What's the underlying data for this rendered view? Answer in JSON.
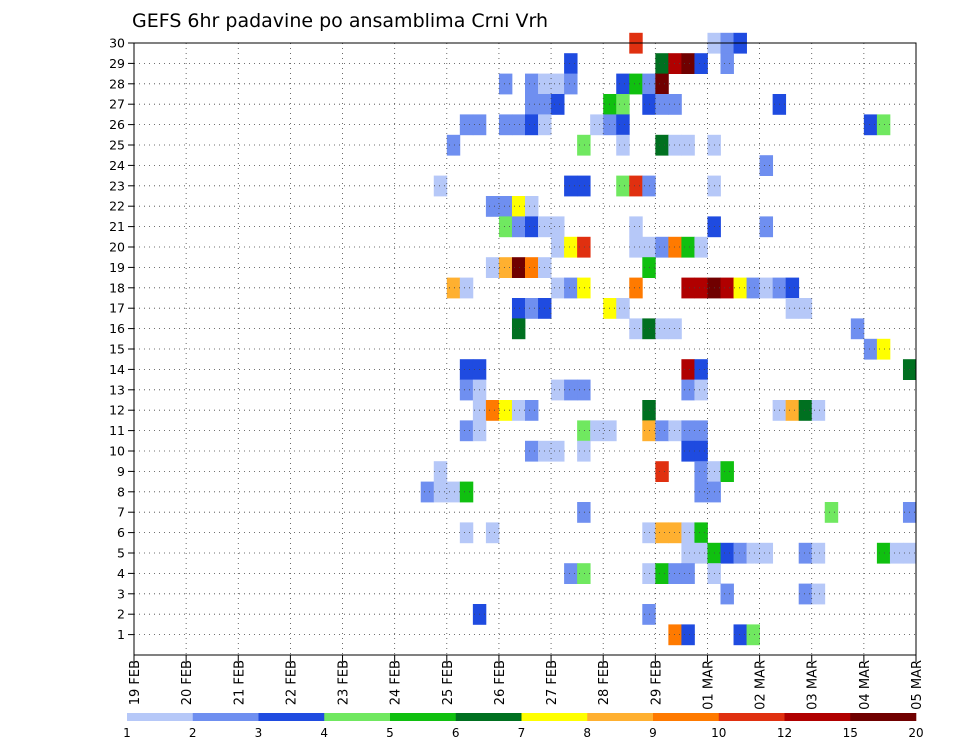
{
  "chart_data": {
    "type": "heatmap",
    "title": "GEFS 6hr padavine po ansamblima Crni Vrh",
    "xlabel": "",
    "ylabel": "",
    "x_ticks": [
      "19 FEB",
      "20 FEB",
      "21 FEB",
      "22 FEB",
      "23 FEB",
      "24 FEB",
      "25 FEB",
      "26 FEB",
      "27 FEB",
      "28 FEB",
      "29 FEB",
      "01 MAR",
      "02 MAR",
      "03 MAR",
      "04 MAR",
      "05 MAR"
    ],
    "y_ticks": [
      "1",
      "2",
      "3",
      "4",
      "5",
      "6",
      "7",
      "8",
      "9",
      "10",
      "11",
      "12",
      "13",
      "14",
      "15",
      "16",
      "17",
      "18",
      "19",
      "20",
      "21",
      "22",
      "23",
      "24",
      "25",
      "26",
      "27",
      "28",
      "29",
      "30"
    ],
    "xlim_steps": [
      0,
      60
    ],
    "ylim": [
      0,
      30
    ],
    "steps_per_day": 4,
    "grid": true,
    "legend": {
      "position": "bottom",
      "labels": [
        "1",
        "2",
        "3",
        "4",
        "5",
        "6",
        "7",
        "8",
        "9",
        "10",
        "12",
        "15",
        "20"
      ],
      "colors": [
        "#b6c8f8",
        "#6f8ff0",
        "#1f4be0",
        "#70e860",
        "#10c010",
        "#007020",
        "#ffff00",
        "#ffb030",
        "#ff7a00",
        "#e03010",
        "#b00000",
        "#700000"
      ]
    },
    "cells": [
      [
        38,
        30,
        9
      ],
      [
        44,
        30,
        0
      ],
      [
        45,
        30,
        1
      ],
      [
        46,
        30,
        2
      ],
      [
        33,
        29,
        2
      ],
      [
        40,
        29,
        5
      ],
      [
        41,
        29,
        10
      ],
      [
        42,
        29,
        11
      ],
      [
        43,
        29,
        2
      ],
      [
        45,
        29,
        1
      ],
      [
        28,
        28,
        1
      ],
      [
        30,
        28,
        1
      ],
      [
        31,
        28,
        0
      ],
      [
        32,
        28,
        0
      ],
      [
        33,
        28,
        1
      ],
      [
        37,
        28,
        2
      ],
      [
        38,
        28,
        4
      ],
      [
        39,
        28,
        1
      ],
      [
        40,
        28,
        11
      ],
      [
        30,
        27,
        1
      ],
      [
        31,
        27,
        1
      ],
      [
        32,
        27,
        2
      ],
      [
        36,
        27,
        4
      ],
      [
        37,
        27,
        3
      ],
      [
        39,
        27,
        2
      ],
      [
        40,
        27,
        1
      ],
      [
        41,
        27,
        1
      ],
      [
        49,
        27,
        2
      ],
      [
        25,
        26,
        1
      ],
      [
        26,
        26,
        1
      ],
      [
        28,
        26,
        1
      ],
      [
        29,
        26,
        1
      ],
      [
        30,
        26,
        2
      ],
      [
        31,
        26,
        0
      ],
      [
        35,
        26,
        0
      ],
      [
        36,
        26,
        1
      ],
      [
        37,
        26,
        2
      ],
      [
        56,
        26,
        2
      ],
      [
        57,
        26,
        3
      ],
      [
        24,
        25,
        1
      ],
      [
        34,
        25,
        3
      ],
      [
        37,
        25,
        0
      ],
      [
        40,
        25,
        5
      ],
      [
        41,
        25,
        0
      ],
      [
        42,
        25,
        0
      ],
      [
        44,
        25,
        0
      ],
      [
        48,
        24,
        1
      ],
      [
        23,
        23,
        0
      ],
      [
        33,
        23,
        2
      ],
      [
        34,
        23,
        2
      ],
      [
        37,
        23,
        3
      ],
      [
        38,
        23,
        9
      ],
      [
        39,
        23,
        1
      ],
      [
        44,
        23,
        0
      ],
      [
        27,
        22,
        1
      ],
      [
        28,
        22,
        1
      ],
      [
        29,
        22,
        6
      ],
      [
        30,
        22,
        0
      ],
      [
        28,
        21,
        3
      ],
      [
        29,
        21,
        1
      ],
      [
        30,
        21,
        2
      ],
      [
        31,
        21,
        0
      ],
      [
        32,
        21,
        0
      ],
      [
        38,
        21,
        0
      ],
      [
        44,
        21,
        2
      ],
      [
        48,
        21,
        1
      ],
      [
        32,
        20,
        0
      ],
      [
        33,
        20,
        6
      ],
      [
        34,
        20,
        9
      ],
      [
        38,
        20,
        0
      ],
      [
        39,
        20,
        0
      ],
      [
        40,
        20,
        1
      ],
      [
        41,
        20,
        8
      ],
      [
        42,
        20,
        4
      ],
      [
        43,
        20,
        0
      ],
      [
        27,
        19,
        0
      ],
      [
        28,
        19,
        7
      ],
      [
        29,
        19,
        11
      ],
      [
        30,
        19,
        8
      ],
      [
        31,
        19,
        0
      ],
      [
        39,
        19,
        4
      ],
      [
        24,
        18,
        7
      ],
      [
        25,
        18,
        0
      ],
      [
        32,
        18,
        0
      ],
      [
        33,
        18,
        1
      ],
      [
        34,
        18,
        6
      ],
      [
        38,
        18,
        8
      ],
      [
        42,
        18,
        10
      ],
      [
        43,
        18,
        10
      ],
      [
        44,
        18,
        11
      ],
      [
        45,
        18,
        10
      ],
      [
        46,
        18,
        6
      ],
      [
        47,
        18,
        1
      ],
      [
        48,
        18,
        0
      ],
      [
        49,
        18,
        1
      ],
      [
        50,
        18,
        2
      ],
      [
        29,
        17,
        2
      ],
      [
        30,
        17,
        1
      ],
      [
        31,
        17,
        2
      ],
      [
        36,
        17,
        6
      ],
      [
        37,
        17,
        0
      ],
      [
        50,
        17,
        0
      ],
      [
        51,
        17,
        0
      ],
      [
        29,
        16,
        5
      ],
      [
        38,
        16,
        0
      ],
      [
        39,
        16,
        5
      ],
      [
        40,
        16,
        0
      ],
      [
        41,
        16,
        0
      ],
      [
        55,
        16,
        1
      ],
      [
        56,
        15,
        1
      ],
      [
        57,
        15,
        6
      ],
      [
        25,
        14,
        2
      ],
      [
        26,
        14,
        2
      ],
      [
        42,
        14,
        10
      ],
      [
        43,
        14,
        2
      ],
      [
        59,
        14,
        5
      ],
      [
        25,
        13,
        1
      ],
      [
        26,
        13,
        0
      ],
      [
        32,
        13,
        0
      ],
      [
        33,
        13,
        1
      ],
      [
        34,
        13,
        1
      ],
      [
        42,
        13,
        1
      ],
      [
        43,
        13,
        0
      ],
      [
        26,
        12,
        0
      ],
      [
        27,
        12,
        8
      ],
      [
        28,
        12,
        6
      ],
      [
        29,
        12,
        0
      ],
      [
        30,
        12,
        1
      ],
      [
        39,
        12,
        5
      ],
      [
        49,
        12,
        0
      ],
      [
        50,
        12,
        7
      ],
      [
        51,
        12,
        5
      ],
      [
        52,
        12,
        0
      ],
      [
        25,
        11,
        1
      ],
      [
        26,
        11,
        0
      ],
      [
        34,
        11,
        3
      ],
      [
        35,
        11,
        0
      ],
      [
        36,
        11,
        0
      ],
      [
        39,
        11,
        7
      ],
      [
        40,
        11,
        1
      ],
      [
        41,
        11,
        0
      ],
      [
        42,
        11,
        1
      ],
      [
        43,
        11,
        1
      ],
      [
        30,
        10,
        1
      ],
      [
        31,
        10,
        0
      ],
      [
        32,
        10,
        0
      ],
      [
        34,
        10,
        0
      ],
      [
        42,
        10,
        2
      ],
      [
        43,
        10,
        2
      ],
      [
        23,
        9,
        0
      ],
      [
        40,
        9,
        9
      ],
      [
        43,
        9,
        1
      ],
      [
        44,
        9,
        0
      ],
      [
        45,
        9,
        4
      ],
      [
        22,
        8,
        1
      ],
      [
        23,
        8,
        0
      ],
      [
        24,
        8,
        0
      ],
      [
        25,
        8,
        4
      ],
      [
        43,
        8,
        1
      ],
      [
        44,
        8,
        1
      ],
      [
        34,
        7,
        1
      ],
      [
        53,
        7,
        3
      ],
      [
        59,
        7,
        1
      ],
      [
        25,
        6,
        0
      ],
      [
        27,
        6,
        0
      ],
      [
        39,
        6,
        0
      ],
      [
        40,
        6,
        7
      ],
      [
        41,
        6,
        7
      ],
      [
        42,
        6,
        0
      ],
      [
        43,
        6,
        4
      ],
      [
        42,
        5,
        0
      ],
      [
        43,
        5,
        0
      ],
      [
        44,
        5,
        4
      ],
      [
        45,
        5,
        2
      ],
      [
        46,
        5,
        1
      ],
      [
        47,
        5,
        0
      ],
      [
        48,
        5,
        0
      ],
      [
        51,
        5,
        1
      ],
      [
        52,
        5,
        0
      ],
      [
        57,
        5,
        4
      ],
      [
        58,
        5,
        0
      ],
      [
        59,
        5,
        0
      ],
      [
        33,
        4,
        1
      ],
      [
        34,
        4,
        3
      ],
      [
        39,
        4,
        0
      ],
      [
        40,
        4,
        4
      ],
      [
        41,
        4,
        1
      ],
      [
        42,
        4,
        1
      ],
      [
        44,
        4,
        0
      ],
      [
        45,
        3,
        1
      ],
      [
        51,
        3,
        1
      ],
      [
        52,
        3,
        0
      ],
      [
        26,
        2,
        2
      ],
      [
        39,
        2,
        1
      ],
      [
        41,
        1,
        8
      ],
      [
        42,
        1,
        2
      ],
      [
        46,
        1,
        2
      ],
      [
        47,
        1,
        3
      ]
    ]
  }
}
